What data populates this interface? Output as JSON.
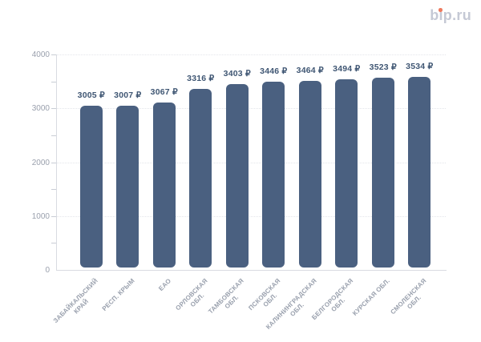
{
  "logo": {
    "text": "bip.ru",
    "dot_color": "#ee7a5e"
  },
  "chart_data": {
    "type": "bar",
    "title": "",
    "categories": [
      "ЗАБАЙКАЛЬСКИЙ\nКРАЙ",
      "РЕСП. КРЫМ",
      "ЕАО",
      "ОРЛОВСКАЯ\nОБЛ.",
      "ТАМБОВСКАЯ\nОБЛ.",
      "ПСКОВСКАЯ\nОБЛ.",
      "КАЛИНИНГРАДСКАЯ\nОБЛ.",
      "БЕЛГОРОДСКАЯ\nОБЛ.",
      "КУРСКАЯ ОБЛ.",
      "СМОЛЕНСКАЯ\nОБЛ."
    ],
    "values": [
      3005,
      3007,
      3067,
      3316,
      3403,
      3446,
      3464,
      3494,
      3523,
      3534
    ],
    "value_labels": [
      "3005 ₽",
      "3007 ₽",
      "3067 ₽",
      "3316 ₽",
      "3403 ₽",
      "3446 ₽",
      "3464 ₽",
      "3494 ₽",
      "3523 ₽",
      "3534 ₽"
    ],
    "currency_symbol": "₽",
    "xlabel": "",
    "ylabel": "",
    "ylim": [
      0,
      4000
    ],
    "y_ticks": [
      {
        "value": 0,
        "label": "0"
      },
      {
        "value": 1000,
        "label": "1000"
      },
      {
        "value": 2000,
        "label": "2000"
      },
      {
        "value": 3000,
        "label": "3000"
      },
      {
        "value": 4000,
        "label": "4000"
      }
    ],
    "gridline_values": [
      1000,
      2000,
      3000,
      4000
    ],
    "minor_tick_step": 500,
    "grid": "horizontal-dotted",
    "legend": "none",
    "colors": {
      "bar": "#4a6080",
      "value_label": "#3f5673",
      "axis_line": "#d9dbe1",
      "y_tick_label": "#9aa0ad",
      "x_tick_label": "#99a0ad",
      "grid_line": "#e3e5ea"
    }
  }
}
